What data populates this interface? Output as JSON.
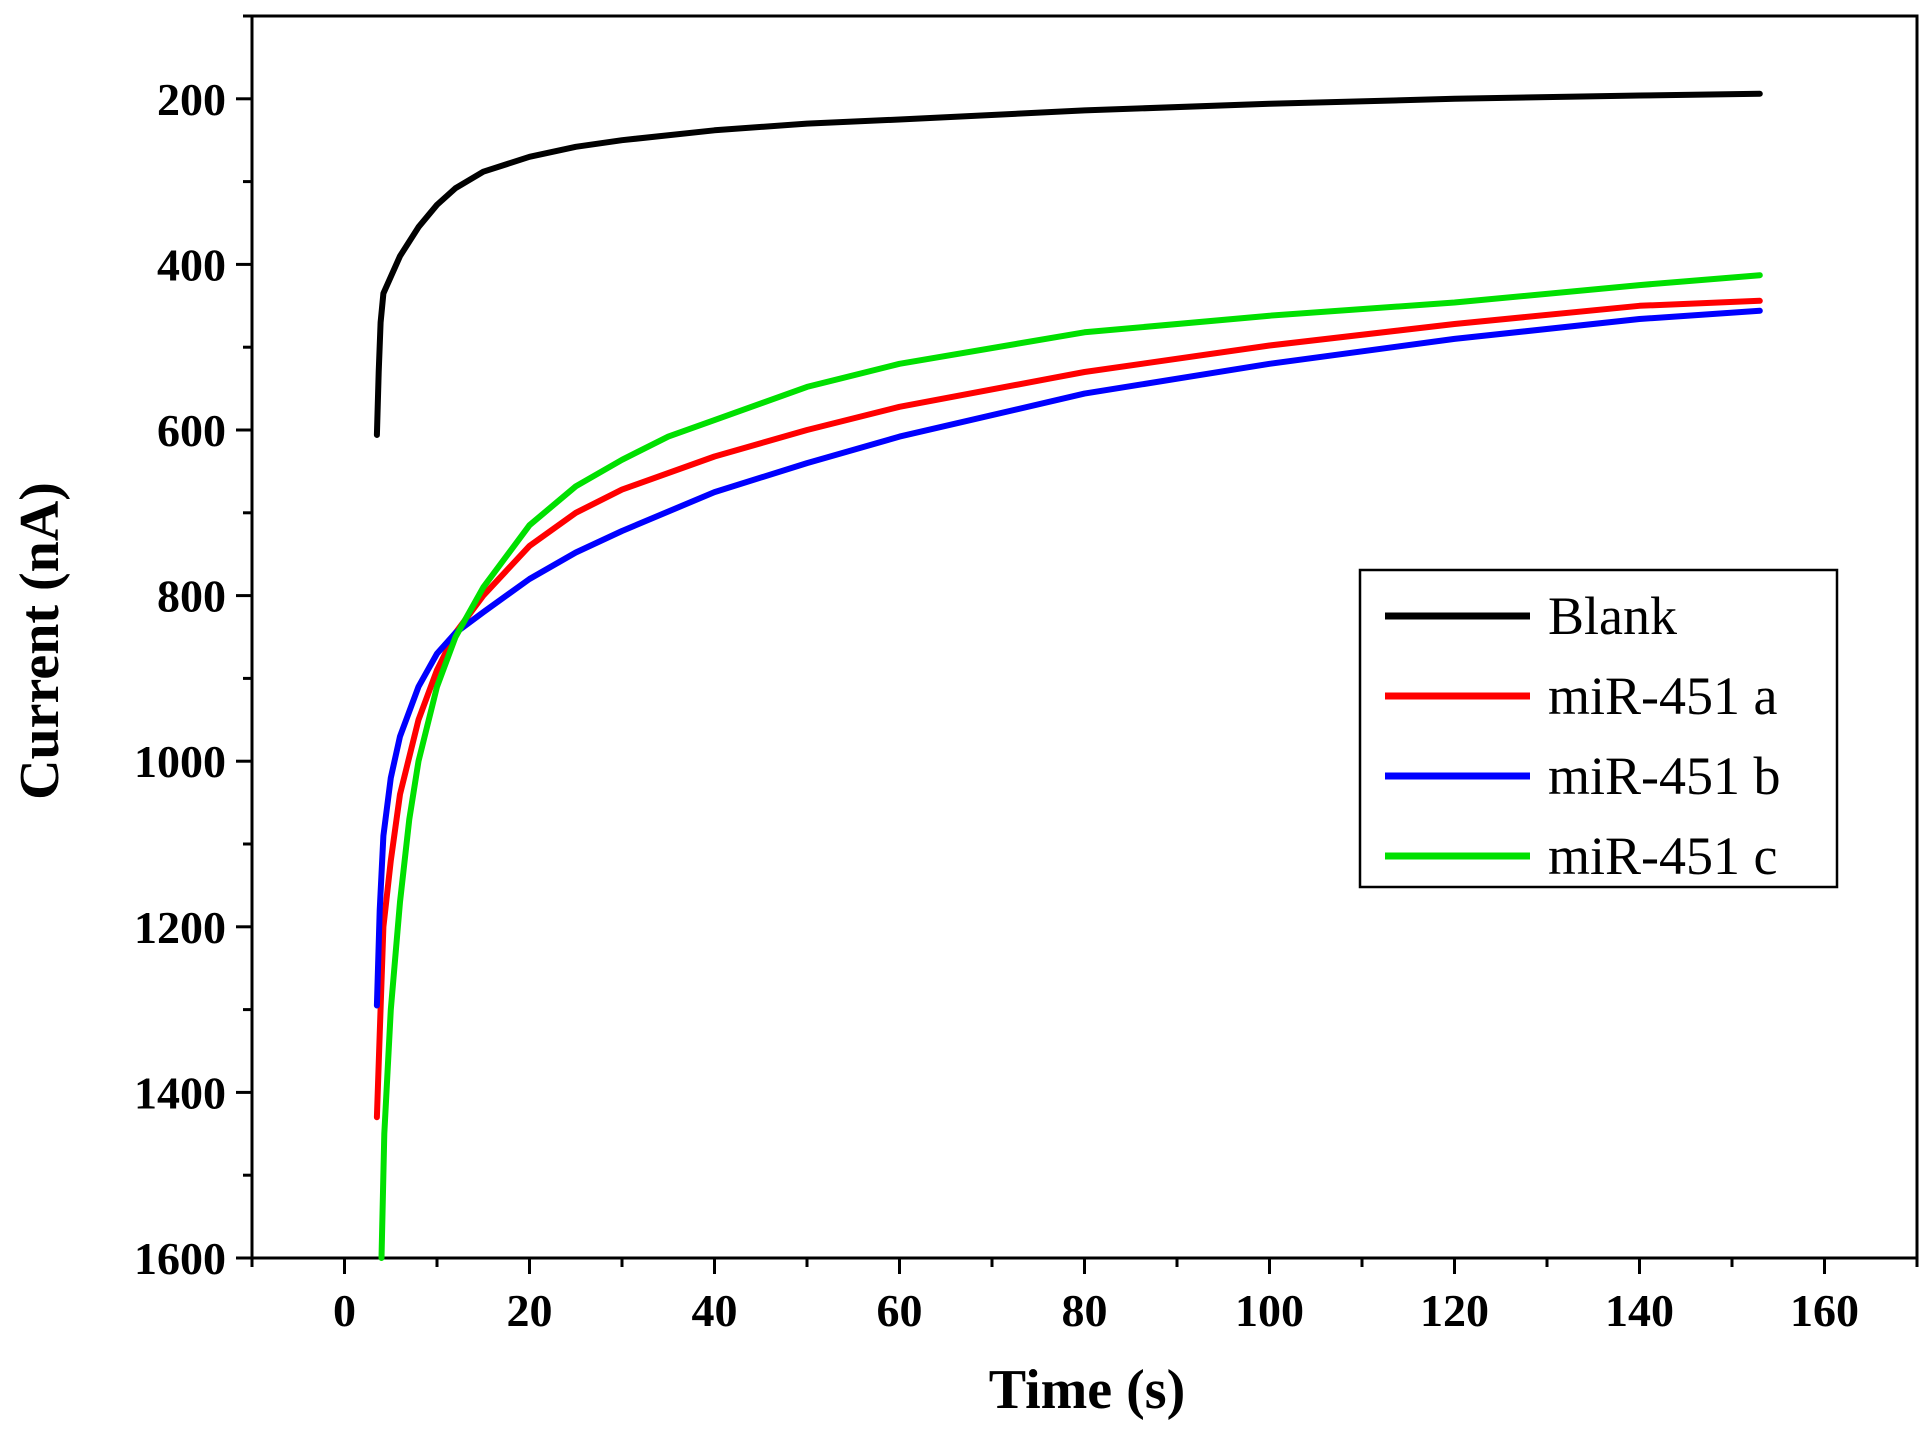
{
  "chart_data": {
    "type": "line",
    "title": "",
    "xlabel": "Time (s)",
    "ylabel": "Current (nA)",
    "xlim": [
      -10,
      170
    ],
    "ylim": [
      1600,
      100
    ],
    "y_inverted": true,
    "x_ticks": [
      0,
      20,
      40,
      60,
      80,
      100,
      120,
      140,
      160
    ],
    "y_ticks": [
      200,
      400,
      600,
      800,
      1000,
      1200,
      1400,
      1600
    ],
    "x_tick_labels": [
      "0",
      "20",
      "40",
      "60",
      "80",
      "100",
      "120",
      "140",
      "160"
    ],
    "y_tick_labels": [
      "200",
      "400",
      "600",
      "800",
      "1000",
      "1200",
      "1400",
      "1600"
    ],
    "grid": false,
    "legend_position": "center-right",
    "series": [
      {
        "name": "Blank",
        "color": "#000000",
        "x": [
          3.5,
          3.7,
          3.9,
          4.2,
          6,
          8,
          10,
          12,
          15,
          20,
          25,
          30,
          40,
          50,
          60,
          80,
          100,
          120,
          140,
          153
        ],
        "y": [
          606,
          530,
          470,
          435,
          390,
          355,
          328,
          308,
          288,
          270,
          258,
          250,
          238,
          230,
          225,
          214,
          206,
          200,
          196,
          194
        ]
      },
      {
        "name": "miR-451 a",
        "color": "#ff0000",
        "x": [
          3.5,
          3.8,
          4.2,
          5,
          6,
          8,
          10,
          12,
          15,
          20,
          25,
          30,
          40,
          50,
          60,
          80,
          100,
          120,
          140,
          153
        ],
        "y": [
          1430,
          1330,
          1200,
          1120,
          1040,
          950,
          890,
          845,
          800,
          740,
          700,
          672,
          632,
          600,
          572,
          530,
          498,
          472,
          450,
          444
        ]
      },
      {
        "name": "miR-451 b",
        "color": "#0000ff",
        "x": [
          3.5,
          3.8,
          4.2,
          5,
          6,
          8,
          10,
          12,
          15,
          20,
          25,
          30,
          40,
          50,
          60,
          80,
          100,
          120,
          140,
          153
        ],
        "y": [
          1295,
          1180,
          1090,
          1020,
          970,
          910,
          870,
          845,
          820,
          780,
          748,
          722,
          675,
          640,
          608,
          556,
          520,
          490,
          466,
          456
        ]
      },
      {
        "name": "miR-451 c",
        "color": "#00e000",
        "x": [
          4,
          4.3,
          5,
          6,
          7,
          8,
          10,
          12,
          15,
          20,
          25,
          30,
          35,
          40,
          50,
          60,
          80,
          100,
          120,
          140,
          153
        ],
        "y": [
          1600,
          1450,
          1300,
          1170,
          1070,
          1000,
          910,
          850,
          790,
          715,
          668,
          636,
          608,
          588,
          548,
          520,
          482,
          462,
          446,
          425,
          413
        ]
      }
    ]
  }
}
